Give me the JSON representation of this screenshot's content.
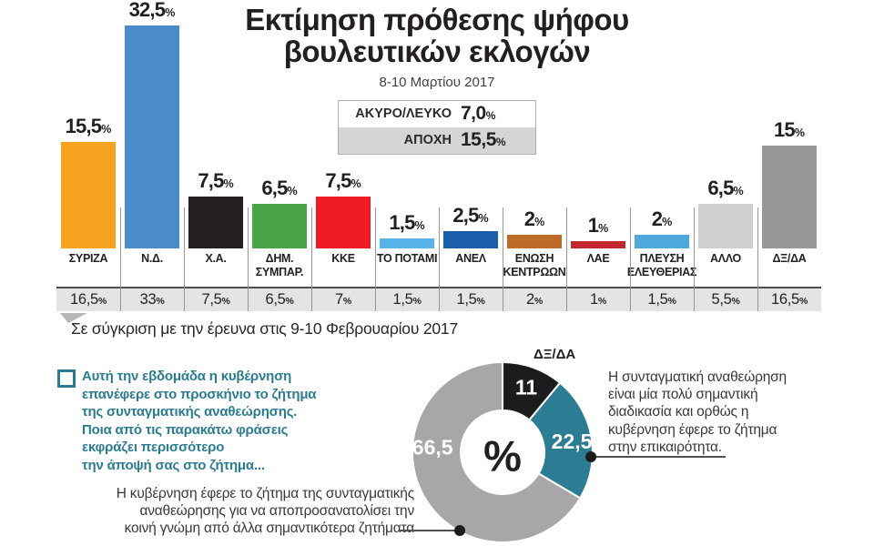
{
  "percent_sign": "%",
  "header": {
    "title": "Εκτίμηση πρόθεσης ψήφου\nβουλευτικών εκλογών",
    "date": "8-10 Μαρτίου 2017",
    "summary_box": {
      "rows": [
        {
          "label": "ΑΚΥΡΟ/ΛΕΥΚΟ",
          "value": "7,0"
        },
        {
          "label": "ΑΠΟΧΗ",
          "value": "15,5"
        }
      ]
    }
  },
  "comparison_note": "Σε σύγκριση με την έρευνα στις 9-10 Φεβρουαρίου 2017",
  "question": {
    "text": "Αυτή την εβδομάδα η κυβέρνηση\nεπανέφερε στο προσκήνιο το ζήτημα\nτης συνταγματικής αναθεώρησης.\nΠοια από τις παρακάτω φράσεις\nεκφράζει περισσότερο\nτην άποψή σας στο ζήτημα..."
  },
  "answers": {
    "positive": "Η συνταγματική αναθεώρηση\nείναι μία πολύ σημαντική\nδιαδικασία και ορθώς η\nκυβέρνηση έφερε το ζήτημα\nστην επικαιρότητα.",
    "negative": "Η κυβέρνηση έφερε το ζήτημα της συνταγματικής\nαναθεώρησης για να αποπροσανατολίσει την\nκοινή γνώμη από άλλα σημαντικότερα ζητήματα"
  },
  "colors": {
    "teal_accent": "#2b7c90",
    "prev_row_bg": "#e6e4e2",
    "divider": "#96969a",
    "dark_line": "#4e4e50"
  },
  "chart_data": [
    {
      "type": "bar",
      "title": "Εκτίμηση πρόθεσης ψήφου βουλευτικών εκλογών",
      "subtitle": "8-10 Μαρτίου 2017",
      "categories": [
        "ΣΥΡΙΖΑ",
        "Ν.Δ.",
        "Χ.Α.",
        "ΔΗΜ.\nΣΥΜΠΑΡ.",
        "ΚΚΕ",
        "ΤΟ ΠΟΤΑΜΙ",
        "ΑΝΕΛ",
        "ΕΝΩΣΗ\nΚΕΝΤΡΩΩΝ",
        "ΛΑΕ",
        "ΠΛΕΥΣΗ\nΕΛΕΥΘΕΡΙΑΣ",
        "ΑΛΛΟ",
        "ΔΞ/ΔΑ"
      ],
      "values": [
        15.5,
        32.5,
        7.5,
        6.5,
        7.5,
        1.5,
        2.5,
        2,
        1,
        2,
        6.5,
        15
      ],
      "value_labels": [
        "15,5",
        "32,5",
        "7,5",
        "6,5",
        "7,5",
        "1,5",
        "2,5",
        "2",
        "1",
        "2",
        "6,5",
        "15"
      ],
      "bar_colors": [
        "#F6A41F",
        "#4A8CCB",
        "#231F20",
        "#4AA445",
        "#EC1B24",
        "#56B4E8",
        "#1A5DAB",
        "#BE6A28",
        "#C1272D",
        "#4FA8DC",
        "#CFCFD1",
        "#97979A"
      ],
      "other_options": [
        {
          "label": "ΑΚΥΡΟ/ΛΕΥΚΟ",
          "value": 7.0
        },
        {
          "label": "ΑΠΟΧΗ",
          "value": 15.5
        }
      ],
      "previous_survey": {
        "note": "Σε σύγκριση με την έρευνα στις 9-10 Φεβρουαρίου 2017",
        "values": [
          "16,5",
          "33",
          "7,5",
          "6,5",
          "7",
          "1,5",
          "1,5",
          "2",
          "1",
          "1,5",
          "5,5",
          "16,5"
        ]
      },
      "ylim": [
        0,
        35
      ],
      "grid": false,
      "legend": "none"
    },
    {
      "type": "pie",
      "center_label": "%",
      "slices": [
        {
          "label": "ΔΞ/ΔΑ",
          "value": 11,
          "display": "11",
          "color": "#1C1C1E"
        },
        {
          "label": "",
          "value": 22.5,
          "display": "22,5",
          "color": "#2C7D93"
        },
        {
          "label": "",
          "value": 66.5,
          "display": "66,5",
          "color": "#A7A7A9"
        }
      ],
      "start_angle_deg": 0,
      "direction": "clockwise"
    }
  ]
}
